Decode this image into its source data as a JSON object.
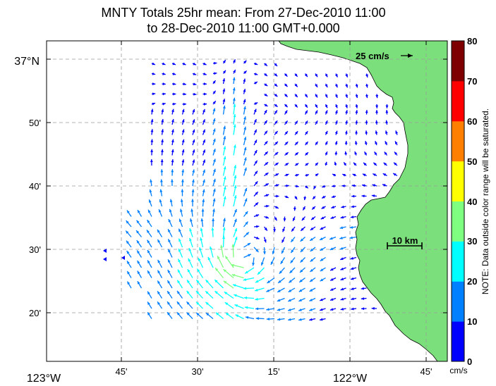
{
  "title": {
    "line1": "MNTY Totals 25hr mean: From 27-Dec-2010 11:00",
    "line2": "to 28-Dec-2010 11:00 GMT+0.000"
  },
  "axes": {
    "lon_ticks": [
      "123°W",
      "45'",
      "30'",
      "15'",
      "122°W",
      "45'"
    ],
    "lat_ticks": [
      "37°N",
      "50'",
      "40'",
      "30'",
      "20'"
    ]
  },
  "legend": {
    "reference_vector": "25 cm/s",
    "scale_bar": "10 km"
  },
  "colorbar": {
    "ticks": [
      "80",
      "70",
      "60",
      "50",
      "40",
      "30",
      "20",
      "10",
      "0"
    ],
    "unit": "cm/s",
    "note": "NOTE: Data outside color range will be saturated.",
    "colors": [
      "#0000ff",
      "#007fff",
      "#00ffff",
      "#7fff7f",
      "#ffff00",
      "#ff7f00",
      "#ff0000",
      "#7f0000"
    ]
  },
  "land_color": "#7be07b"
}
